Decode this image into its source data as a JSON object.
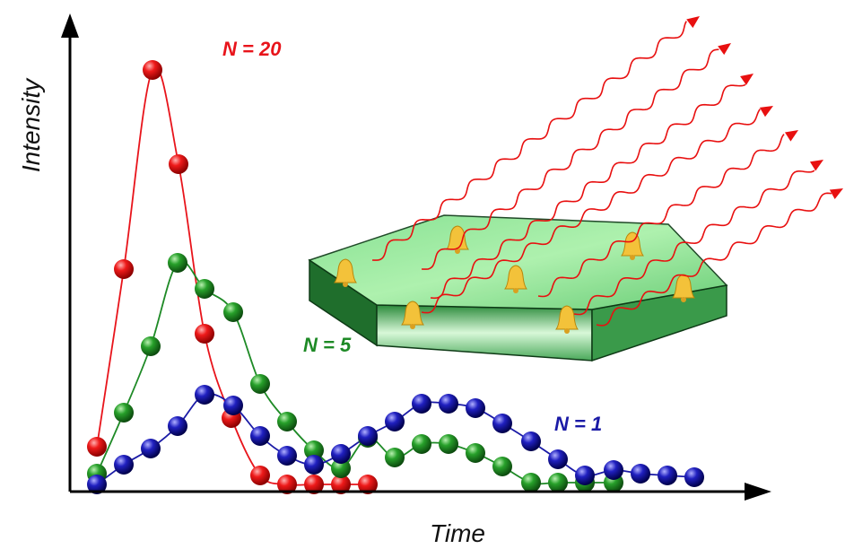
{
  "chart_data": {
    "type": "line",
    "xlabel": "Time",
    "ylabel": "Intensity",
    "xlim": [
      0,
      780
    ],
    "ylim": [
      0,
      530
    ],
    "series": [
      {
        "name": "N = 20",
        "color": "#e8141b",
        "x": [
          30,
          60,
          92,
          121,
          150,
          180,
          212,
          242,
          272,
          302,
          332
        ],
        "values": [
          50,
          248,
          470,
          365,
          176,
          82,
          18,
          8,
          8,
          8,
          8
        ]
      },
      {
        "name": "N = 5",
        "color": "#1e8a26",
        "x": [
          30,
          60,
          90,
          120,
          150,
          182,
          212,
          242,
          272,
          302,
          332,
          362,
          392,
          422,
          452,
          482,
          514,
          544,
          574,
          606
        ],
        "values": [
          20,
          88,
          162,
          255,
          226,
          200,
          120,
          78,
          46,
          26,
          60,
          38,
          53,
          53,
          43,
          28,
          10,
          10,
          10,
          10
        ]
      },
      {
        "name": "N = 1",
        "color": "#1a1aa6",
        "x": [
          30,
          60,
          90,
          120,
          150,
          182,
          212,
          242,
          272,
          302,
          332,
          362,
          392,
          422,
          452,
          482,
          514,
          544,
          574,
          606,
          636,
          666,
          696
        ],
        "values": [
          8,
          30,
          48,
          73,
          108,
          96,
          62,
          40,
          30,
          42,
          62,
          78,
          98,
          98,
          93,
          76,
          56,
          36,
          18,
          24,
          20,
          18,
          16
        ]
      }
    ]
  }
}
